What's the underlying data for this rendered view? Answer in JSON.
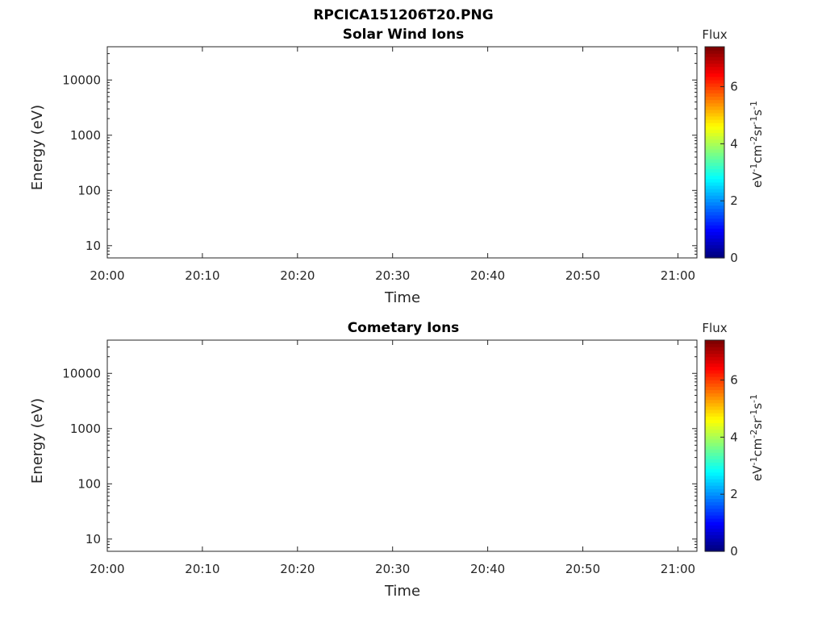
{
  "figure_title": "RPCICA151206T20.PNG",
  "chart_data": [
    {
      "type": "heatmap",
      "title": "Solar Wind Ions",
      "xlabel": "Time",
      "ylabel": "Energy (eV)",
      "x_ticks": [
        "20:00",
        "20:10",
        "20:20",
        "20:30",
        "20:40",
        "20:50",
        "21:00"
      ],
      "xlim": [
        "20:00",
        "21:02"
      ],
      "y_scale": "log",
      "y_ticks": [
        "10",
        "100",
        "1000",
        "10000"
      ],
      "ylim": [
        6,
        40000
      ],
      "colorbar": {
        "label": "Flux",
        "unit": "eV-1cm-2sr-1s-1",
        "ticks": [
          "0",
          "2",
          "4",
          "6"
        ],
        "range": [
          0,
          7.4
        ]
      },
      "grid": false
    },
    {
      "type": "heatmap",
      "title": "Cometary Ions",
      "xlabel": "Time",
      "ylabel": "Energy (eV)",
      "x_ticks": [
        "20:00",
        "20:10",
        "20:20",
        "20:30",
        "20:40",
        "20:50",
        "21:00"
      ],
      "xlim": [
        "20:00",
        "21:02"
      ],
      "y_scale": "log",
      "y_ticks": [
        "10",
        "100",
        "1000",
        "10000"
      ],
      "ylim": [
        6,
        40000
      ],
      "colorbar": {
        "label": "Flux",
        "unit": "eV-1cm-2sr-1s-1",
        "ticks": [
          "0",
          "2",
          "4",
          "6"
        ],
        "range": [
          0,
          7.4
        ]
      },
      "grid": false
    }
  ],
  "colors": {
    "axis": "#262626",
    "background": "#ffffff"
  }
}
